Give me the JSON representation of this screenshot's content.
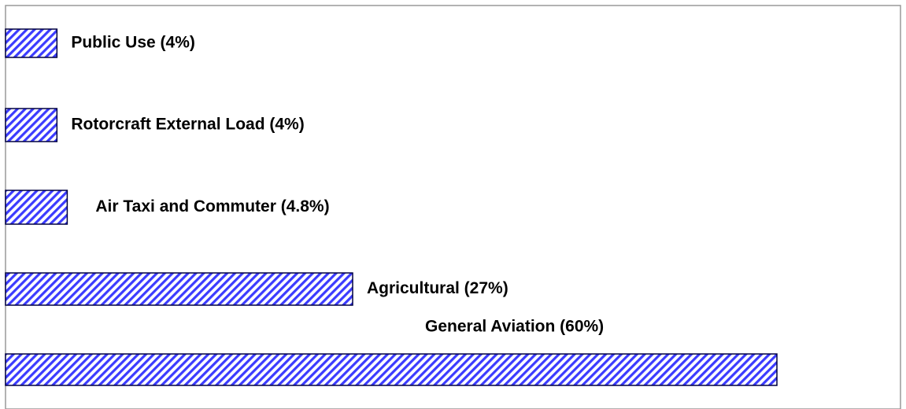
{
  "chart_data": {
    "type": "hbar",
    "categories": [
      "Public Use (4%)",
      "Rotorcraft External Load (4%)",
      "Air Taxi and Commuter (4.8%)",
      "Agricultural (27%)",
      "General Aviation (60%)"
    ],
    "values": [
      4,
      4,
      4.8,
      27,
      60
    ],
    "color": "#3b3bff"
  }
}
